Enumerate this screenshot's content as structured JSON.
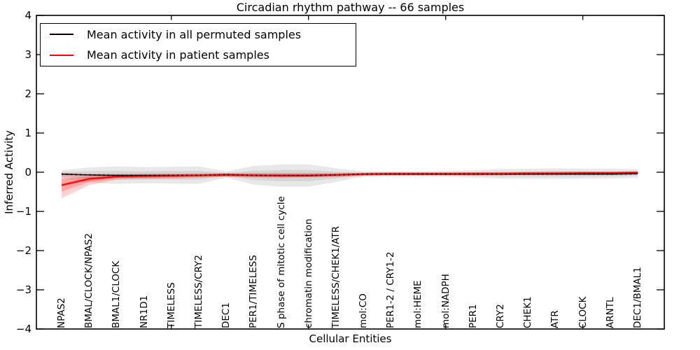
{
  "title": "Circadian rhythm pathway -- 66 samples",
  "axes": {
    "xlabel": "Cellular Entities",
    "ylabel": "Inferred Activity"
  },
  "legend": {
    "items": [
      {
        "label": "Mean activity in all permuted samples",
        "color": "#000000"
      },
      {
        "label": "Mean activity in patient samples",
        "color": "#ff0000"
      }
    ]
  },
  "chart_data": {
    "type": "line",
    "title": "Circadian rhythm pathway -- 66 samples",
    "xlabel": "Cellular Entities",
    "ylabel": "Inferred Activity",
    "ylim": [
      -4,
      4
    ],
    "yticks": [
      -4,
      -3,
      -2,
      -1,
      0,
      1,
      2,
      3,
      4
    ],
    "xtick_major_data_positions": [
      5,
      10,
      15,
      20
    ],
    "grid": false,
    "legend_position": "upper left",
    "categories": [
      "NPAS2",
      "BMAL/CLOCK/NPAS2",
      "BMAL1/CLOCK",
      "NR1D1",
      "TIMELESS",
      "TIMELESS/CRY2",
      "DEC1",
      "PER1/TIMELESS",
      "S phase of mitotic cell cycle",
      "chromatin modification",
      "TIMELESS/CHEK1/ATR",
      "mol:CO",
      "PER1-2 / CRY1-2",
      "mol:HEME",
      "mol:NADPH",
      "PER1",
      "CRY2",
      "CHEK1",
      "ATR",
      "CLOCK",
      "ARNTL",
      "DEC1/BMAL1"
    ],
    "series": [
      {
        "name": "Mean activity in all permuted samples",
        "color": "#000000",
        "style": "solid-with-dotted-overlay",
        "values": [
          -0.05,
          -0.07,
          -0.08,
          -0.08,
          -0.08,
          -0.08,
          -0.06,
          -0.08,
          -0.09,
          -0.09,
          -0.07,
          -0.05,
          -0.05,
          -0.05,
          -0.05,
          -0.05,
          -0.05,
          -0.05,
          -0.05,
          -0.05,
          -0.05,
          -0.04
        ],
        "band_upper": [
          0.05,
          0.12,
          0.15,
          0.13,
          0.14,
          0.15,
          0.02,
          0.16,
          0.2,
          0.2,
          0.1,
          0.02,
          0.02,
          0.02,
          0.03,
          0.05,
          0.08,
          0.09,
          0.1,
          0.09,
          0.09,
          0.08
        ],
        "band_lower": [
          -0.15,
          -0.26,
          -0.3,
          -0.28,
          -0.29,
          -0.3,
          -0.14,
          -0.32,
          -0.37,
          -0.37,
          -0.25,
          -0.11,
          -0.1,
          -0.1,
          -0.11,
          -0.14,
          -0.16,
          -0.17,
          -0.17,
          -0.17,
          -0.16,
          -0.14
        ],
        "band_color": "#787878"
      },
      {
        "name": "Mean activity in patient samples",
        "color": "#ff0000",
        "style": "solid",
        "values": [
          -0.33,
          -0.17,
          -0.11,
          -0.1,
          -0.09,
          -0.08,
          -0.07,
          -0.08,
          -0.08,
          -0.08,
          -0.07,
          -0.05,
          -0.04,
          -0.04,
          -0.04,
          -0.04,
          -0.04,
          -0.03,
          -0.03,
          -0.02,
          -0.02,
          -0.01
        ],
        "band_upper": [
          -0.01,
          -0.04,
          -0.04,
          -0.03,
          -0.03,
          -0.03,
          -0.02,
          -0.02,
          -0.02,
          -0.02,
          -0.02,
          -0.01,
          -0.01,
          -0.01,
          -0.01,
          0.0,
          0.0,
          0.0,
          0.01,
          0.01,
          0.01,
          0.02
        ],
        "band_lower": [
          -0.66,
          -0.33,
          -0.19,
          -0.17,
          -0.16,
          -0.14,
          -0.12,
          -0.14,
          -0.15,
          -0.14,
          -0.12,
          -0.09,
          -0.08,
          -0.08,
          -0.08,
          -0.08,
          -0.07,
          -0.07,
          -0.06,
          -0.06,
          -0.05,
          -0.04
        ],
        "band_color": "#ff0000"
      }
    ]
  }
}
